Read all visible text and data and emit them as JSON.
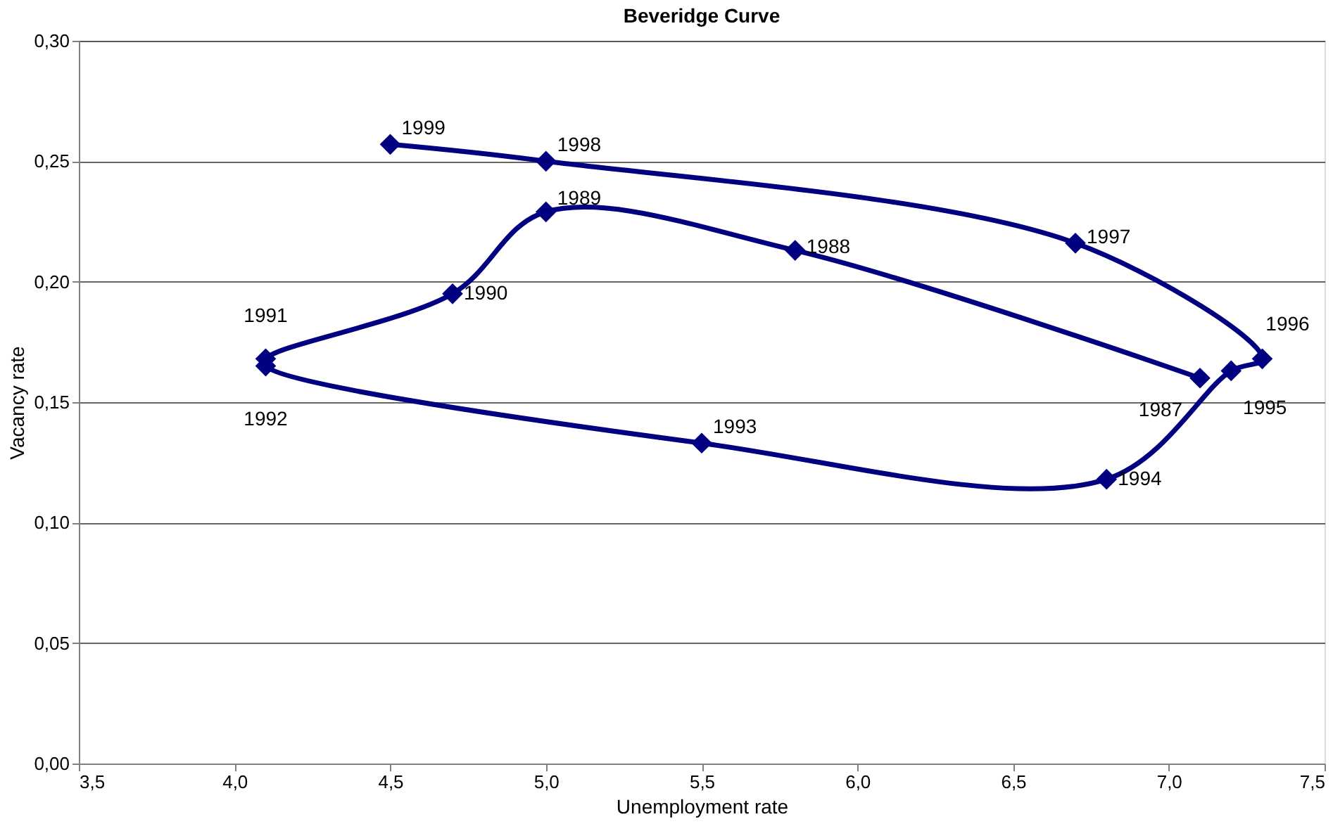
{
  "chart_data": {
    "type": "line",
    "title": "Beveridge Curve",
    "xlabel": "Unemployment rate",
    "ylabel": "Vacancy rate",
    "x": [
      7.1,
      5.8,
      5.0,
      4.7,
      4.1,
      4.1,
      5.5,
      6.8,
      7.2,
      7.3,
      6.7,
      5.0,
      4.5
    ],
    "series": [
      {
        "color": "#000080",
        "values": [
          0.16,
          0.213,
          0.229,
          0.195,
          0.168,
          0.165,
          0.133,
          0.118,
          0.163,
          0.168,
          0.216,
          0.25,
          0.257
        ]
      }
    ],
    "annotations": [
      {
        "text": "1987",
        "x": 7.1,
        "y": 0.16
      },
      {
        "text": "1988",
        "x": 5.8,
        "y": 0.213
      },
      {
        "text": "1989",
        "x": 5.0,
        "y": 0.229
      },
      {
        "text": "1990",
        "x": 4.7,
        "y": 0.195
      },
      {
        "text": "1991",
        "x": 4.1,
        "y": 0.168
      },
      {
        "text": "1992",
        "x": 4.1,
        "y": 0.165
      },
      {
        "text": "1993",
        "x": 5.5,
        "y": 0.133
      },
      {
        "text": "1994",
        "x": 6.8,
        "y": 0.118
      },
      {
        "text": "1995",
        "x": 7.2,
        "y": 0.163
      },
      {
        "text": "1996",
        "x": 7.3,
        "y": 0.168
      },
      {
        "text": "1997",
        "x": 6.7,
        "y": 0.216
      },
      {
        "text": "1998",
        "x": 5.0,
        "y": 0.25
      },
      {
        "text": "1999",
        "x": 4.5,
        "y": 0.257
      }
    ],
    "xlim": [
      3.5,
      7.5
    ],
    "xticks": [
      {
        "value": 3.5,
        "label": "3,5"
      },
      {
        "value": 4.0,
        "label": "4,0"
      },
      {
        "value": 4.5,
        "label": "4,5"
      },
      {
        "value": 5.0,
        "label": "5,0"
      },
      {
        "value": 5.5,
        "label": "5,5"
      },
      {
        "value": 6.0,
        "label": "6,0"
      },
      {
        "value": 6.5,
        "label": "6,5"
      },
      {
        "value": 7.0,
        "label": "7,0"
      },
      {
        "value": 7.5,
        "label": "7,5"
      }
    ],
    "ylim": [
      0,
      0.3
    ],
    "yticks": [
      {
        "value": 0,
        "label": "0,00"
      },
      {
        "value": 0.05,
        "label": "0,05"
      },
      {
        "value": 0.1,
        "label": "0,10"
      },
      {
        "value": 0.15,
        "label": "0,15"
      },
      {
        "value": 0.2,
        "label": "0,20"
      },
      {
        "value": 0.25,
        "label": "0,25"
      },
      {
        "value": 0.3,
        "label": "0,30"
      }
    ],
    "grid": "y",
    "marker": "diamond",
    "line_style": "solid"
  }
}
